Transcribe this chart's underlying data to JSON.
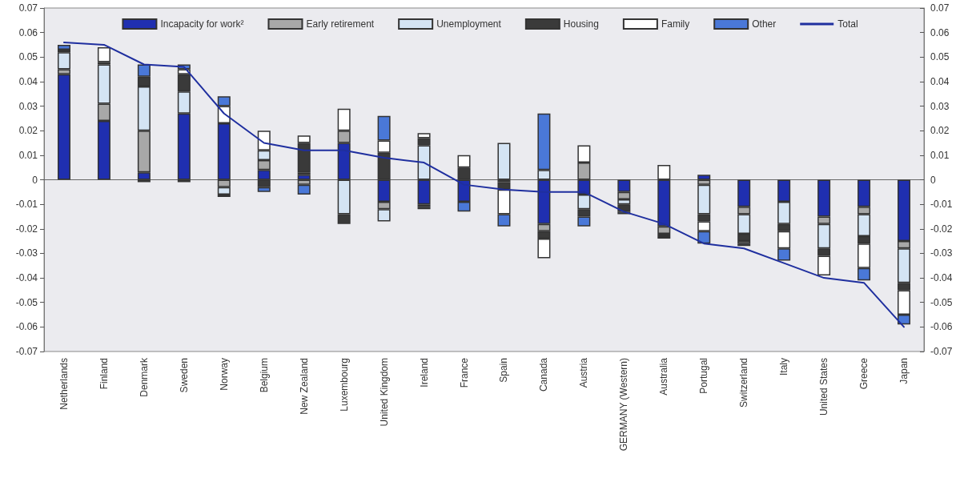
{
  "chart_data": {
    "type": "bar",
    "stacked": true,
    "categories": [
      "Netherlands",
      "Finland",
      "Denmark",
      "Sweden",
      "Norway",
      "Belgium",
      "New Zealand",
      "Luxembourg",
      "United Kingdom",
      "Ireland",
      "France",
      "Spain",
      "Canada",
      "Austria",
      "GERMANY (Western)",
      "Australia",
      "Portugal",
      "Switzerland",
      "Italy",
      "United States",
      "Greece",
      "Japan"
    ],
    "series": [
      {
        "name": "Incapacity for work²",
        "color": "#1f2fb0",
        "values": [
          0.043,
          0.024,
          0.003,
          0.027,
          0.023,
          0.004,
          0.002,
          0.015,
          -0.009,
          -0.01,
          -0.009,
          null,
          -0.018,
          -0.006,
          -0.005,
          -0.019,
          0.002,
          -0.011,
          -0.009,
          -0.015,
          -0.011,
          -0.025
        ]
      },
      {
        "name": "Early retirement",
        "color": "#a8a8a8",
        "values": [
          0.002,
          0.007,
          0.017,
          -0.001,
          -0.003,
          0.004,
          -0.002,
          0.005,
          -0.003,
          -0.001,
          null,
          -0.001,
          -0.003,
          0.007,
          -0.003,
          -0.003,
          -0.002,
          -0.003,
          null,
          -0.003,
          -0.003,
          -0.003
        ]
      },
      {
        "name": "Unemployment",
        "color": "#d4e4f4",
        "values": [
          0.007,
          0.016,
          0.018,
          0.009,
          -0.003,
          0.004,
          0.001,
          -0.014,
          -0.005,
          0.014,
          null,
          0.015,
          0.004,
          -0.006,
          -0.002,
          null,
          -0.012,
          -0.008,
          -0.009,
          -0.01,
          -0.009,
          -0.014
        ]
      },
      {
        "name": "Housing",
        "color": "#3a3a3a",
        "values": [
          0.001,
          0.001,
          0.004,
          0.007,
          -0.001,
          -0.003,
          0.012,
          -0.004,
          0.011,
          0.003,
          0.005,
          -0.003,
          -0.003,
          -0.003,
          -0.003,
          -0.001,
          -0.003,
          -0.003,
          -0.003,
          -0.003,
          -0.003,
          -0.003
        ]
      },
      {
        "name": "Family",
        "color": "#ffffff",
        "values": [
          null,
          0.006,
          -0.001,
          0.002,
          0.007,
          0.008,
          0.003,
          0.009,
          0.005,
          0.002,
          0.005,
          -0.01,
          -0.008,
          0.007,
          null,
          0.006,
          -0.004,
          -0.001,
          -0.007,
          -0.008,
          -0.01,
          -0.01
        ]
      },
      {
        "name": "Other",
        "color": "#4a78d8",
        "values": [
          0.002,
          null,
          0.005,
          0.002,
          0.004,
          -0.002,
          -0.004,
          null,
          0.01,
          -0.001,
          -0.004,
          -0.005,
          0.023,
          -0.004,
          -0.001,
          -0.001,
          -0.005,
          -0.001,
          -0.005,
          null,
          -0.005,
          -0.004
        ]
      },
      {
        "name": "Total",
        "type": "line",
        "color": "#1f2f9f",
        "values": [
          0.056,
          0.055,
          0.047,
          0.046,
          0.027,
          0.015,
          0.012,
          0.012,
          0.009,
          0.007,
          -0.002,
          -0.004,
          -0.005,
          -0.005,
          -0.013,
          -0.018,
          -0.026,
          -0.028,
          -0.034,
          -0.04,
          -0.042,
          -0.06
        ]
      }
    ],
    "ylim": [
      -0.07,
      0.07
    ],
    "yticks": [
      -0.07,
      -0.06,
      -0.05,
      -0.04,
      -0.03,
      -0.02,
      -0.01,
      0,
      0.01,
      0.02,
      0.03,
      0.04,
      0.05,
      0.06,
      0.07
    ],
    "y2lim": [
      -0.07,
      0.07
    ],
    "y2ticks": [
      -0.07,
      -0.06,
      -0.05,
      -0.04,
      -0.03,
      -0.02,
      -0.01,
      0,
      0.01,
      0.02,
      0.03,
      0.04,
      0.05,
      0.06,
      0.07
    ],
    "legend": "top",
    "marker": "none",
    "line_style": "solid"
  }
}
